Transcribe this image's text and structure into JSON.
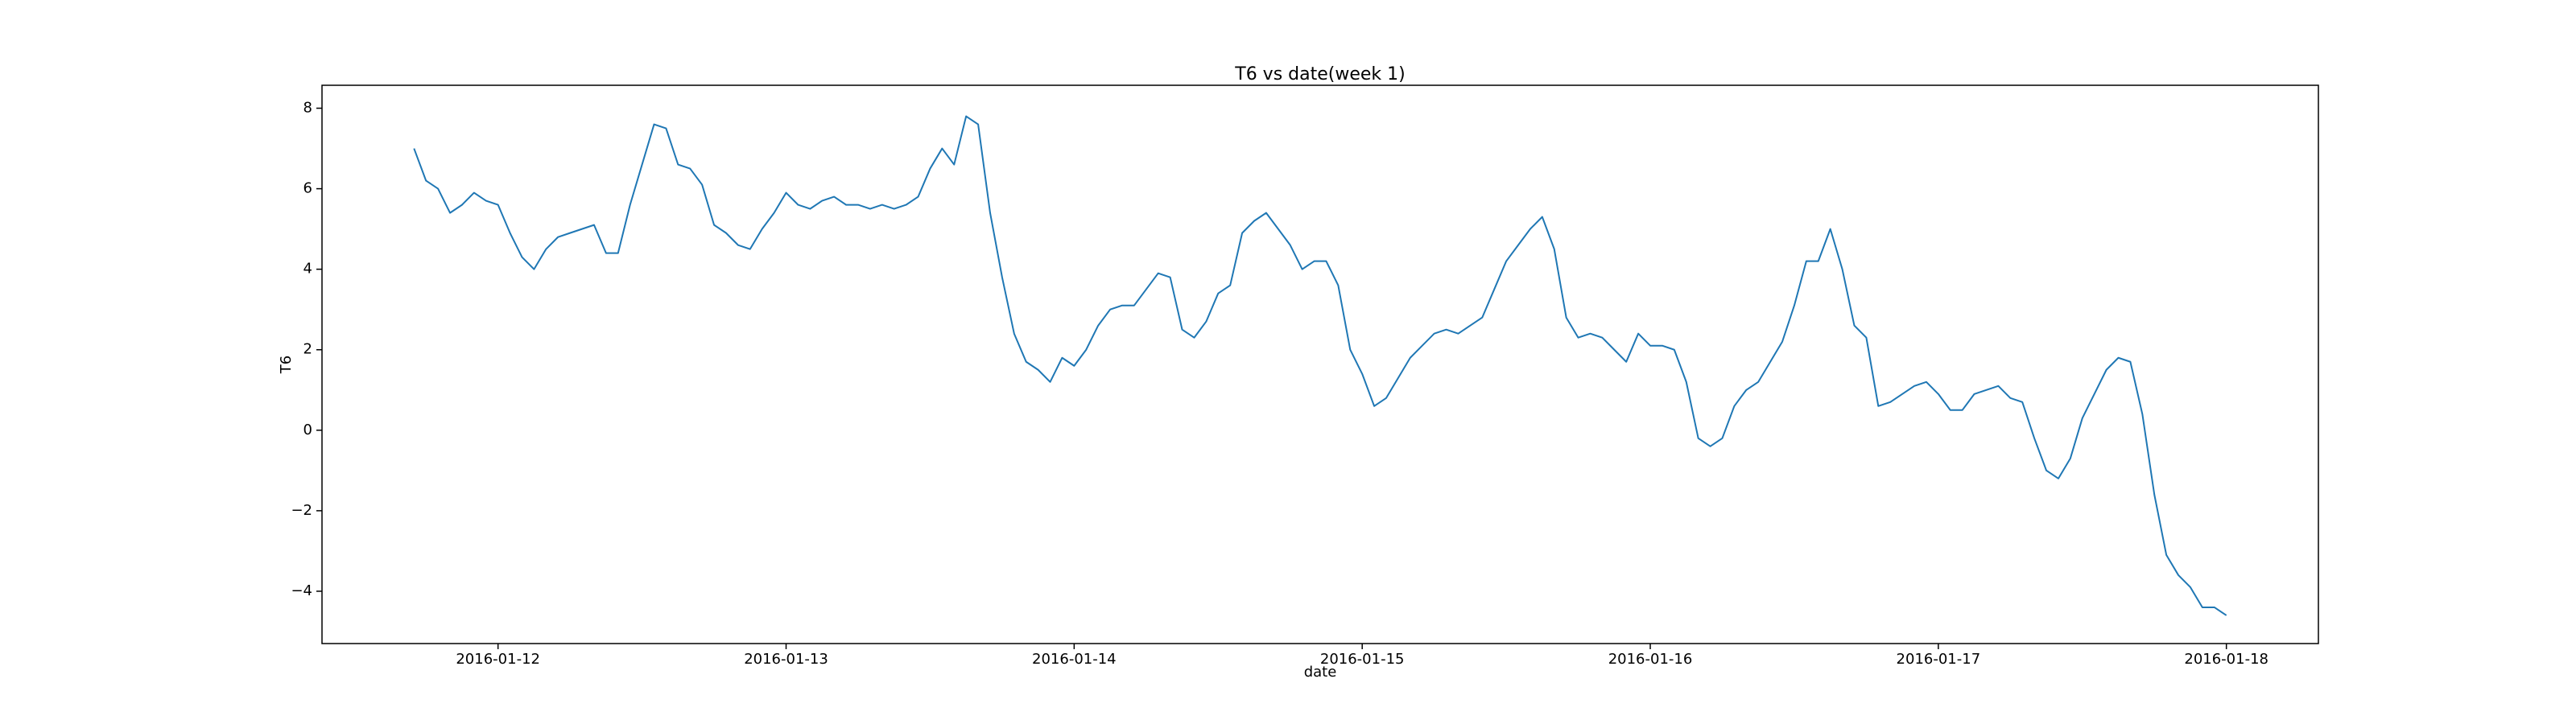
{
  "chart_data": {
    "type": "line",
    "title": "T6 vs date(week 1)",
    "x_label": "date",
    "y_label": "T6",
    "color": "#1f77b4",
    "grid": false,
    "x": [
      "2016-01-11T17:00",
      "2016-01-11T18:00",
      "2016-01-11T19:00",
      "2016-01-11T20:00",
      "2016-01-11T21:00",
      "2016-01-11T22:00",
      "2016-01-11T23:00",
      "2016-01-12T00:00",
      "2016-01-12T01:00",
      "2016-01-12T02:00",
      "2016-01-12T03:00",
      "2016-01-12T04:00",
      "2016-01-12T05:00",
      "2016-01-12T06:00",
      "2016-01-12T07:00",
      "2016-01-12T08:00",
      "2016-01-12T09:00",
      "2016-01-12T10:00",
      "2016-01-12T11:00",
      "2016-01-12T12:00",
      "2016-01-12T13:00",
      "2016-01-12T14:00",
      "2016-01-12T15:00",
      "2016-01-12T16:00",
      "2016-01-12T17:00",
      "2016-01-12T18:00",
      "2016-01-12T19:00",
      "2016-01-12T20:00",
      "2016-01-12T21:00",
      "2016-01-12T22:00",
      "2016-01-12T23:00",
      "2016-01-13T00:00",
      "2016-01-13T01:00",
      "2016-01-13T02:00",
      "2016-01-13T03:00",
      "2016-01-13T04:00",
      "2016-01-13T05:00",
      "2016-01-13T06:00",
      "2016-01-13T07:00",
      "2016-01-13T08:00",
      "2016-01-13T09:00",
      "2016-01-13T10:00",
      "2016-01-13T11:00",
      "2016-01-13T12:00",
      "2016-01-13T13:00",
      "2016-01-13T14:00",
      "2016-01-13T15:00",
      "2016-01-13T16:00",
      "2016-01-13T17:00",
      "2016-01-13T18:00",
      "2016-01-13T19:00",
      "2016-01-13T20:00",
      "2016-01-13T21:00",
      "2016-01-13T22:00",
      "2016-01-13T23:00",
      "2016-01-14T00:00",
      "2016-01-14T01:00",
      "2016-01-14T02:00",
      "2016-01-14T03:00",
      "2016-01-14T04:00",
      "2016-01-14T05:00",
      "2016-01-14T06:00",
      "2016-01-14T07:00",
      "2016-01-14T08:00",
      "2016-01-14T09:00",
      "2016-01-14T10:00",
      "2016-01-14T11:00",
      "2016-01-14T12:00",
      "2016-01-14T13:00",
      "2016-01-14T14:00",
      "2016-01-14T15:00",
      "2016-01-14T16:00",
      "2016-01-14T17:00",
      "2016-01-14T18:00",
      "2016-01-14T19:00",
      "2016-01-14T20:00",
      "2016-01-14T21:00",
      "2016-01-14T22:00",
      "2016-01-14T23:00",
      "2016-01-15T00:00",
      "2016-01-15T01:00",
      "2016-01-15T02:00",
      "2016-01-15T03:00",
      "2016-01-15T04:00",
      "2016-01-15T05:00",
      "2016-01-15T06:00",
      "2016-01-15T07:00",
      "2016-01-15T08:00",
      "2016-01-15T09:00",
      "2016-01-15T10:00",
      "2016-01-15T11:00",
      "2016-01-15T12:00",
      "2016-01-15T13:00",
      "2016-01-15T14:00",
      "2016-01-15T15:00",
      "2016-01-15T16:00",
      "2016-01-15T17:00",
      "2016-01-15T18:00",
      "2016-01-15T19:00",
      "2016-01-15T20:00",
      "2016-01-15T21:00",
      "2016-01-15T22:00",
      "2016-01-15T23:00",
      "2016-01-16T00:00",
      "2016-01-16T01:00",
      "2016-01-16T02:00",
      "2016-01-16T03:00",
      "2016-01-16T04:00",
      "2016-01-16T05:00",
      "2016-01-16T06:00",
      "2016-01-16T07:00",
      "2016-01-16T08:00",
      "2016-01-16T09:00",
      "2016-01-16T10:00",
      "2016-01-16T11:00",
      "2016-01-16T12:00",
      "2016-01-16T13:00",
      "2016-01-16T14:00",
      "2016-01-16T15:00",
      "2016-01-16T16:00",
      "2016-01-16T17:00",
      "2016-01-16T18:00",
      "2016-01-16T19:00",
      "2016-01-16T20:00",
      "2016-01-16T21:00",
      "2016-01-16T22:00",
      "2016-01-16T23:00",
      "2016-01-17T00:00",
      "2016-01-17T01:00",
      "2016-01-17T02:00",
      "2016-01-17T03:00",
      "2016-01-17T04:00",
      "2016-01-17T05:00",
      "2016-01-17T06:00",
      "2016-01-17T07:00",
      "2016-01-17T08:00",
      "2016-01-17T09:00",
      "2016-01-17T10:00",
      "2016-01-17T11:00",
      "2016-01-17T12:00",
      "2016-01-17T13:00",
      "2016-01-17T14:00",
      "2016-01-17T15:00",
      "2016-01-17T16:00",
      "2016-01-17T17:00",
      "2016-01-17T18:00",
      "2016-01-17T19:00",
      "2016-01-17T20:00",
      "2016-01-17T21:00",
      "2016-01-17T22:00",
      "2016-01-17T23:00",
      "2016-01-18T00:00"
    ],
    "values": [
      7.0,
      6.2,
      6.0,
      5.4,
      5.6,
      5.9,
      5.7,
      5.6,
      4.9,
      4.3,
      4.0,
      4.5,
      4.8,
      4.9,
      5.0,
      5.1,
      4.4,
      4.4,
      5.6,
      6.6,
      7.6,
      7.5,
      6.6,
      6.5,
      6.1,
      5.1,
      4.9,
      4.6,
      4.5,
      5.0,
      5.4,
      5.9,
      5.6,
      5.5,
      5.7,
      5.8,
      5.6,
      5.6,
      5.5,
      5.6,
      5.5,
      5.6,
      5.8,
      6.5,
      7.0,
      6.6,
      7.8,
      7.6,
      5.4,
      3.8,
      2.4,
      1.7,
      1.5,
      1.2,
      1.8,
      1.6,
      2.0,
      2.6,
      3.0,
      3.1,
      3.1,
      3.5,
      3.9,
      3.8,
      2.5,
      2.3,
      2.7,
      3.4,
      3.6,
      4.9,
      5.2,
      5.4,
      5.0,
      4.6,
      4.0,
      4.2,
      4.2,
      3.6,
      2.0,
      1.4,
      0.6,
      0.8,
      1.3,
      1.8,
      2.1,
      2.4,
      2.5,
      2.4,
      2.6,
      2.8,
      3.5,
      4.2,
      4.6,
      5.0,
      5.3,
      4.5,
      2.8,
      2.3,
      2.4,
      2.3,
      2.0,
      1.7,
      2.4,
      2.1,
      2.1,
      2.0,
      1.2,
      -0.2,
      -0.4,
      -0.2,
      0.6,
      1.0,
      1.2,
      1.7,
      2.2,
      3.1,
      4.2,
      4.2,
      5.0,
      4.0,
      2.6,
      2.3,
      0.6,
      0.7,
      0.9,
      1.1,
      1.2,
      0.9,
      0.5,
      0.5,
      0.9,
      1.0,
      1.1,
      0.8,
      0.7,
      -0.2,
      -1.0,
      -1.2,
      -0.7,
      0.3,
      0.9,
      1.5,
      1.8,
      1.7,
      0.4,
      -1.6,
      -3.1,
      -3.6,
      -3.9,
      -4.4,
      -4.4,
      -4.6
    ],
    "xlim": [
      "2016-01-11T09:20",
      "2016-01-18T07:40"
    ],
    "xticks": [
      "2016-01-12",
      "2016-01-13",
      "2016-01-14",
      "2016-01-15",
      "2016-01-16",
      "2016-01-17",
      "2016-01-18"
    ],
    "ylim": [
      -5.3,
      8.57
    ],
    "yticks": [
      {
        "value": -4,
        "label": "−4"
      },
      {
        "value": -2,
        "label": "−2"
      },
      0,
      2,
      4,
      6,
      8
    ]
  }
}
